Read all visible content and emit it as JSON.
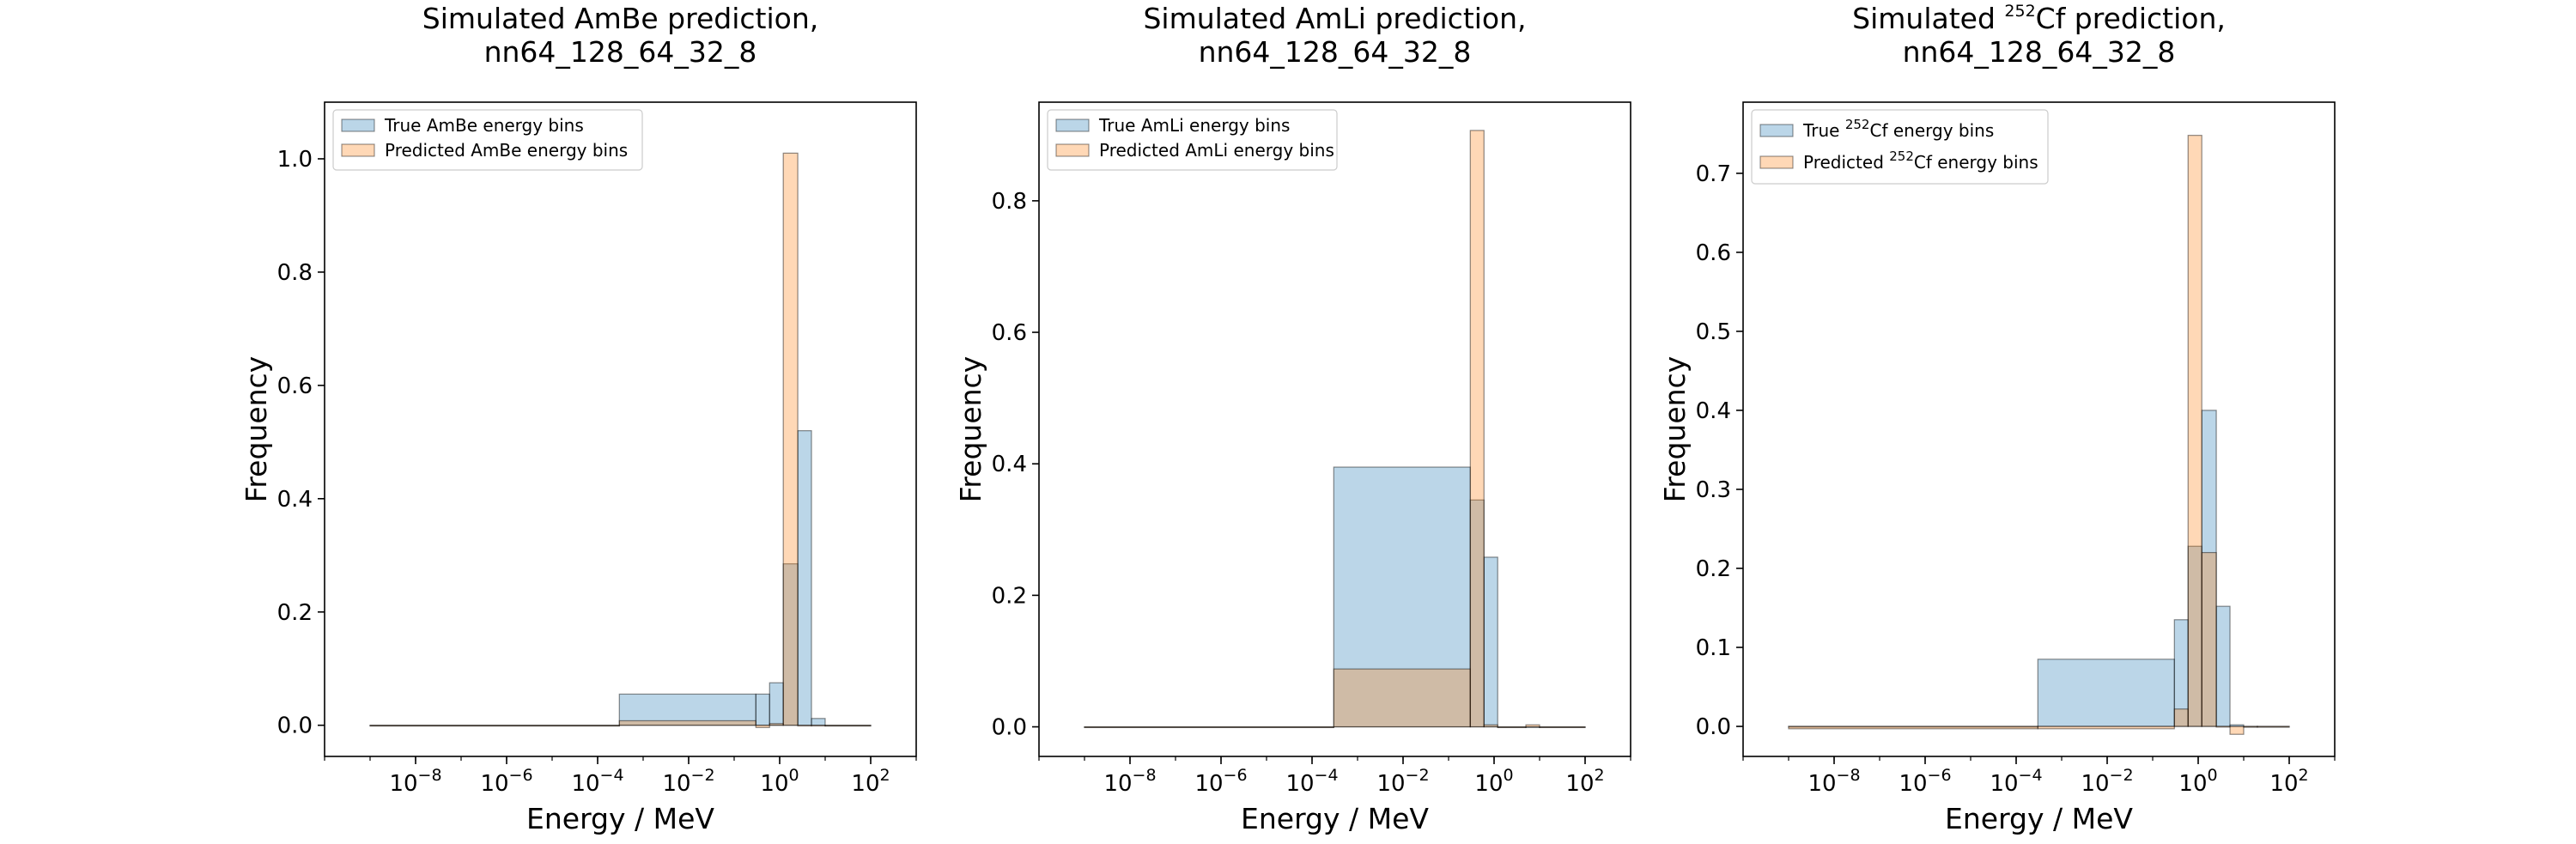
{
  "colors": {
    "true_fill": "#1f77b4",
    "predicted_fill": "#ff7f0e",
    "axes": "#000000",
    "legend_border": "#cccccc"
  },
  "chart_data": [
    {
      "type": "bar",
      "title_line1": "Simulated AmBe prediction,",
      "title_line2": "nn64_128_64_32_8",
      "title_isotope_sup": "",
      "xlabel": "Energy / MeV",
      "ylabel": "Frequency",
      "xscale": "log",
      "xlim": [
        1e-10,
        1000
      ],
      "ylim": [
        -0.055,
        1.1
      ],
      "xticks": [
        {
          "base": "10",
          "exp": "−8",
          "value": 1e-08
        },
        {
          "base": "10",
          "exp": "−6",
          "value": 1e-06
        },
        {
          "base": "10",
          "exp": "−4",
          "value": 0.0001
        },
        {
          "base": "10",
          "exp": "−2",
          "value": 0.01
        },
        {
          "base": "10",
          "exp": "0",
          "value": 1
        },
        {
          "base": "10",
          "exp": "2",
          "value": 100
        }
      ],
      "yticks": [
        {
          "label": "0.0",
          "value": 0.0
        },
        {
          "label": "0.2",
          "value": 0.2
        },
        {
          "label": "0.4",
          "value": 0.4
        },
        {
          "label": "0.6",
          "value": 0.6
        },
        {
          "label": "0.8",
          "value": 0.8
        },
        {
          "label": "1.0",
          "value": 1.0
        }
      ],
      "legend_position": "top-left",
      "bin_edges": [
        1e-09,
        0.0003,
        0.3,
        0.6,
        1.2,
        2.5,
        5.0,
        10.0,
        100.0
      ],
      "series": [
        {
          "name_pre": "True AmBe energy bins",
          "name_sup": "",
          "name_post": "",
          "values": [
            0.0,
            0.055,
            0.055,
            0.075,
            0.285,
            0.52,
            0.012,
            0.0
          ]
        },
        {
          "name_pre": "Predicted AmBe energy bins",
          "name_sup": "",
          "name_post": "",
          "values": [
            0.0,
            0.008,
            -0.004,
            0.003,
            1.01,
            0.0,
            0.0,
            0.0
          ]
        }
      ]
    },
    {
      "type": "bar",
      "title_line1": "Simulated AmLi prediction,",
      "title_line2": "nn64_128_64_32_8",
      "title_isotope_sup": "",
      "xlabel": "Energy / MeV",
      "ylabel": "Frequency",
      "xscale": "log",
      "xlim": [
        1e-10,
        1000
      ],
      "ylim": [
        -0.045,
        0.95
      ],
      "xticks": [
        {
          "base": "10",
          "exp": "−8",
          "value": 1e-08
        },
        {
          "base": "10",
          "exp": "−6",
          "value": 1e-06
        },
        {
          "base": "10",
          "exp": "−4",
          "value": 0.0001
        },
        {
          "base": "10",
          "exp": "−2",
          "value": 0.01
        },
        {
          "base": "10",
          "exp": "0",
          "value": 1
        },
        {
          "base": "10",
          "exp": "2",
          "value": 100
        }
      ],
      "yticks": [
        {
          "label": "0.0",
          "value": 0.0
        },
        {
          "label": "0.2",
          "value": 0.2
        },
        {
          "label": "0.4",
          "value": 0.4
        },
        {
          "label": "0.6",
          "value": 0.6
        },
        {
          "label": "0.8",
          "value": 0.8
        }
      ],
      "legend_position": "top-left",
      "bin_edges": [
        1e-09,
        0.0003,
        0.3,
        0.6,
        1.2,
        5.0,
        10.0,
        100.0
      ],
      "series": [
        {
          "name_pre": "True AmLi energy bins",
          "name_sup": "",
          "name_post": "",
          "values": [
            0.0,
            0.395,
            0.345,
            0.258,
            0.0,
            0.0,
            0.0
          ]
        },
        {
          "name_pre": "Predicted AmLi energy bins",
          "name_sup": "",
          "name_post": "",
          "values": [
            0.0,
            0.088,
            0.907,
            0.003,
            0.0,
            0.003,
            0.0
          ]
        }
      ]
    },
    {
      "type": "bar",
      "title_line1": "Simulated ",
      "title_isotope_sup": "252",
      "title_line1_post": "Cf prediction,",
      "title_line2": "nn64_128_64_32_8",
      "xlabel": "Energy / MeV",
      "ylabel": "Frequency",
      "xscale": "log",
      "xlim": [
        1e-10,
        1000
      ],
      "ylim": [
        -0.038,
        0.79
      ],
      "xticks": [
        {
          "base": "10",
          "exp": "−8",
          "value": 1e-08
        },
        {
          "base": "10",
          "exp": "−6",
          "value": 1e-06
        },
        {
          "base": "10",
          "exp": "−4",
          "value": 0.0001
        },
        {
          "base": "10",
          "exp": "−2",
          "value": 0.01
        },
        {
          "base": "10",
          "exp": "0",
          "value": 1
        },
        {
          "base": "10",
          "exp": "2",
          "value": 100
        }
      ],
      "yticks": [
        {
          "label": "0.0",
          "value": 0.0
        },
        {
          "label": "0.1",
          "value": 0.1
        },
        {
          "label": "0.2",
          "value": 0.2
        },
        {
          "label": "0.3",
          "value": 0.3
        },
        {
          "label": "0.4",
          "value": 0.4
        },
        {
          "label": "0.5",
          "value": 0.5
        },
        {
          "label": "0.6",
          "value": 0.6
        },
        {
          "label": "0.7",
          "value": 0.7
        }
      ],
      "legend_position": "top-left",
      "bin_edges": [
        1e-09,
        0.0003,
        0.3,
        0.6,
        1.2,
        2.5,
        5.0,
        10.0,
        20.0,
        100.0
      ],
      "series": [
        {
          "name_pre": "True ",
          "name_sup": "252",
          "name_post": "Cf energy bins",
          "values": [
            0.0,
            0.085,
            0.135,
            0.228,
            0.4,
            0.152,
            0.002,
            0.0,
            0.0
          ]
        },
        {
          "name_pre": "Predicted ",
          "name_sup": "252",
          "name_post": "Cf energy bins",
          "values": [
            -0.003,
            -0.003,
            0.022,
            0.748,
            0.22,
            0.0,
            -0.01,
            0.0,
            0.0
          ]
        }
      ]
    }
  ]
}
